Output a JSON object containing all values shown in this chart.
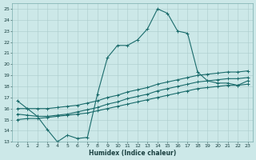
{
  "xlabel": "Humidex (Indice chaleur)",
  "bg_color": "#cce8e8",
  "grid_color": "#aacccc",
  "line_color": "#1a6b6b",
  "xlim": [
    -0.5,
    23.5
  ],
  "ylim": [
    13,
    25.5
  ],
  "xticks": [
    0,
    1,
    2,
    3,
    4,
    5,
    6,
    7,
    8,
    9,
    10,
    11,
    12,
    13,
    14,
    15,
    16,
    17,
    18,
    19,
    20,
    21,
    22,
    23
  ],
  "yticks": [
    13,
    14,
    15,
    16,
    17,
    18,
    19,
    20,
    21,
    22,
    23,
    24,
    25
  ],
  "line1_x": [
    0,
    1,
    2,
    3,
    4,
    5,
    6,
    7,
    8,
    9,
    10,
    11,
    12,
    13,
    14,
    15,
    16,
    17,
    18,
    19,
    20,
    21,
    22,
    23
  ],
  "line1_y": [
    16.7,
    16.0,
    15.3,
    14.1,
    13.0,
    13.6,
    13.3,
    13.4,
    17.3,
    20.6,
    21.7,
    21.7,
    22.2,
    23.2,
    25.0,
    24.6,
    23.0,
    22.8,
    19.3,
    18.5,
    18.3,
    18.3,
    18.1,
    18.5
  ],
  "line2_x": [
    0,
    1,
    2,
    3,
    4,
    5,
    6,
    7,
    8,
    9,
    10,
    11,
    12,
    13,
    14,
    15,
    16,
    17,
    18,
    19,
    20,
    21,
    22,
    23
  ],
  "line2_y": [
    15.5,
    15.4,
    15.3,
    15.3,
    15.4,
    15.5,
    15.7,
    15.9,
    16.1,
    16.4,
    16.6,
    16.9,
    17.1,
    17.3,
    17.6,
    17.8,
    18.0,
    18.2,
    18.4,
    18.5,
    18.6,
    18.7,
    18.7,
    18.8
  ],
  "line3_x": [
    0,
    1,
    2,
    3,
    4,
    5,
    6,
    7,
    8,
    9,
    10,
    11,
    12,
    13,
    14,
    15,
    16,
    17,
    18,
    19,
    20,
    21,
    22,
    23
  ],
  "line3_y": [
    15.0,
    15.1,
    15.1,
    15.2,
    15.3,
    15.4,
    15.5,
    15.6,
    15.8,
    16.0,
    16.2,
    16.4,
    16.6,
    16.8,
    17.0,
    17.2,
    17.4,
    17.6,
    17.8,
    17.9,
    18.0,
    18.1,
    18.1,
    18.2
  ],
  "line4_x": [
    0,
    1,
    2,
    3,
    4,
    5,
    6,
    7,
    8,
    9,
    10,
    11,
    12,
    13,
    14,
    15,
    16,
    17,
    18,
    19,
    20,
    21,
    22,
    23
  ],
  "line4_y": [
    16.0,
    16.0,
    16.0,
    16.0,
    16.1,
    16.2,
    16.3,
    16.5,
    16.7,
    17.0,
    17.2,
    17.5,
    17.7,
    17.9,
    18.2,
    18.4,
    18.6,
    18.8,
    19.0,
    19.1,
    19.2,
    19.3,
    19.3,
    19.4
  ]
}
